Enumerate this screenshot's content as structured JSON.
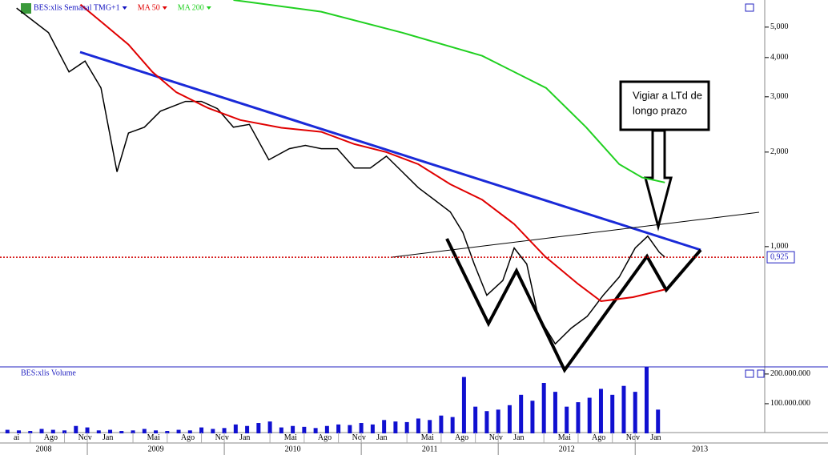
{
  "chart_data": [
    {
      "type": "line",
      "log_scale": true,
      "series": [
        {
          "name": "BES:xlis Semanal TMG+1",
          "color": "#1010c0",
          "line_color": "#000000",
          "x": [
            5.8,
            8.6,
            10.4,
            11.8,
            13.2,
            14.6,
            15.6,
            17,
            18.4,
            20.6,
            22,
            23.4,
            24.8,
            26.2,
            27.9,
            29.7,
            31.1,
            32.5,
            33.9,
            35.4,
            36.8,
            38.2,
            39.6,
            41,
            42.4,
            43.8,
            44.9,
            45.9,
            47,
            48.4,
            49.4,
            50.5,
            51.5,
            53,
            54.4,
            55.8,
            57.2,
            58.6,
            60,
            61.1,
            62.1,
            62.6
          ],
          "values": [
            5.75,
            4.8,
            3.6,
            3.9,
            3.2,
            1.73,
            2.3,
            2.4,
            2.7,
            2.9,
            2.9,
            2.75,
            2.4,
            2.45,
            1.89,
            2.05,
            2.1,
            2.05,
            2.05,
            1.78,
            1.78,
            1.94,
            1.73,
            1.54,
            1.41,
            1.29,
            1.11,
            0.88,
            0.7,
            0.78,
            0.99,
            0.88,
            0.6,
            0.49,
            0.55,
            0.6,
            0.7,
            0.8,
            0.99,
            1.08,
            0.96,
            0.925
          ]
        },
        {
          "name": "MA 50",
          "color": "#e00000",
          "x": [
            11.4,
            13.5,
            15.6,
            17.7,
            19.8,
            22.6,
            25.4,
            29,
            32.5,
            35.4,
            38.2,
            41,
            43.8,
            46.6,
            49.4,
            52.1,
            55,
            57,
            59.8,
            62.6
          ],
          "values": [
            5.9,
            5.1,
            4.4,
            3.6,
            3.1,
            2.76,
            2.53,
            2.39,
            2.32,
            2.12,
            2.0,
            1.83,
            1.58,
            1.41,
            1.18,
            0.93,
            0.76,
            0.67,
            0.69,
            0.73
          ]
        },
        {
          "name": "MA 200",
          "color": "#20d020",
          "x": [
            24.8,
            32.5,
            39.6,
            46.6,
            52.2,
            55.7,
            58.6,
            60.6,
            62.6
          ],
          "values": [
            6.1,
            5.6,
            4.8,
            4.05,
            3.2,
            2.4,
            1.83,
            1.66,
            1.6
          ]
        }
      ],
      "xlim": [
        4.35,
        71.35
      ],
      "ylim": [
        0.414,
        6.1
      ],
      "yticks": [
        {
          "value": 1,
          "label": "1,000"
        },
        {
          "value": 2,
          "label": "2,000"
        },
        {
          "value": 3,
          "label": "3,000"
        },
        {
          "value": 4,
          "label": "4,000"
        },
        {
          "value": 5,
          "label": "5,000"
        }
      ],
      "last_price": {
        "value": 0.925,
        "label": "0,925"
      },
      "annotation": [
        "Vigiar a LTd de",
        "longo prazo"
      ]
    },
    {
      "type": "bar",
      "title": "BES:xlis Volume",
      "color": "#1010d0",
      "x": [
        5,
        6,
        7,
        8,
        9,
        10,
        11,
        12,
        13,
        14,
        15,
        16,
        17,
        18,
        19,
        20,
        21,
        22,
        23,
        24,
        25,
        26,
        27,
        28,
        29,
        30,
        31,
        32,
        33,
        34,
        35,
        36,
        37,
        38,
        39,
        40,
        41,
        42,
        43,
        44,
        45,
        46,
        47,
        48,
        49,
        50,
        51,
        52,
        53,
        54,
        55,
        56,
        57,
        58,
        59,
        60,
        61,
        62
      ],
      "values": [
        12000000,
        10000000,
        8000000,
        15000000,
        12000000,
        10000000,
        25000000,
        20000000,
        10000000,
        12000000,
        8000000,
        10000000,
        15000000,
        10000000,
        8000000,
        12000000,
        10000000,
        20000000,
        15000000,
        18000000,
        30000000,
        25000000,
        35000000,
        40000000,
        20000000,
        25000000,
        22000000,
        18000000,
        25000000,
        30000000,
        28000000,
        35000000,
        30000000,
        45000000,
        40000000,
        38000000,
        50000000,
        45000000,
        60000000,
        55000000,
        190000000,
        90000000,
        75000000,
        80000000,
        95000000,
        130000000,
        110000000,
        170000000,
        140000000,
        90000000,
        105000000,
        120000000,
        150000000,
        130000000,
        160000000,
        140000000,
        230000000,
        80000000
      ],
      "xlim": [
        4.35,
        71.35
      ],
      "ylim": [
        0,
        224000000
      ],
      "yticks": [
        {
          "value": 100000000,
          "label": "100.000.000"
        },
        {
          "value": 200000000,
          "label": "200.000.000"
        }
      ],
      "xticks": [
        {
          "value": 4,
          "label": "ai"
        },
        {
          "value": 7,
          "label": "Ago"
        },
        {
          "value": 10,
          "label": "Nov"
        },
        {
          "value": 12,
          "label": "Jan"
        },
        {
          "value": 16,
          "label": "Mai"
        },
        {
          "value": 19,
          "label": "Ago"
        },
        {
          "value": 22,
          "label": "Nov"
        },
        {
          "value": 24,
          "label": "Jan"
        },
        {
          "value": 28,
          "label": "Mai"
        },
        {
          "value": 31,
          "label": "Ago"
        },
        {
          "value": 34,
          "label": "Nov"
        },
        {
          "value": 36,
          "label": "Jan"
        },
        {
          "value": 40,
          "label": "Mai"
        },
        {
          "value": 43,
          "label": "Ago"
        },
        {
          "value": 46,
          "label": "Nov"
        },
        {
          "value": 48,
          "label": "Jan"
        },
        {
          "value": 52,
          "label": "Mai"
        },
        {
          "value": 55,
          "label": "Ago"
        },
        {
          "value": 58,
          "label": "Nov"
        },
        {
          "value": 60,
          "label": "Jan"
        }
      ],
      "year_ticks": [
        {
          "value": 0,
          "label": "2008"
        },
        {
          "value": 12,
          "label": "2009"
        },
        {
          "value": 24,
          "label": "2010"
        },
        {
          "value": 36,
          "label": "2011"
        },
        {
          "value": 48,
          "label": "2012"
        },
        {
          "value": 60,
          "label": "2013"
        }
      ]
    }
  ]
}
